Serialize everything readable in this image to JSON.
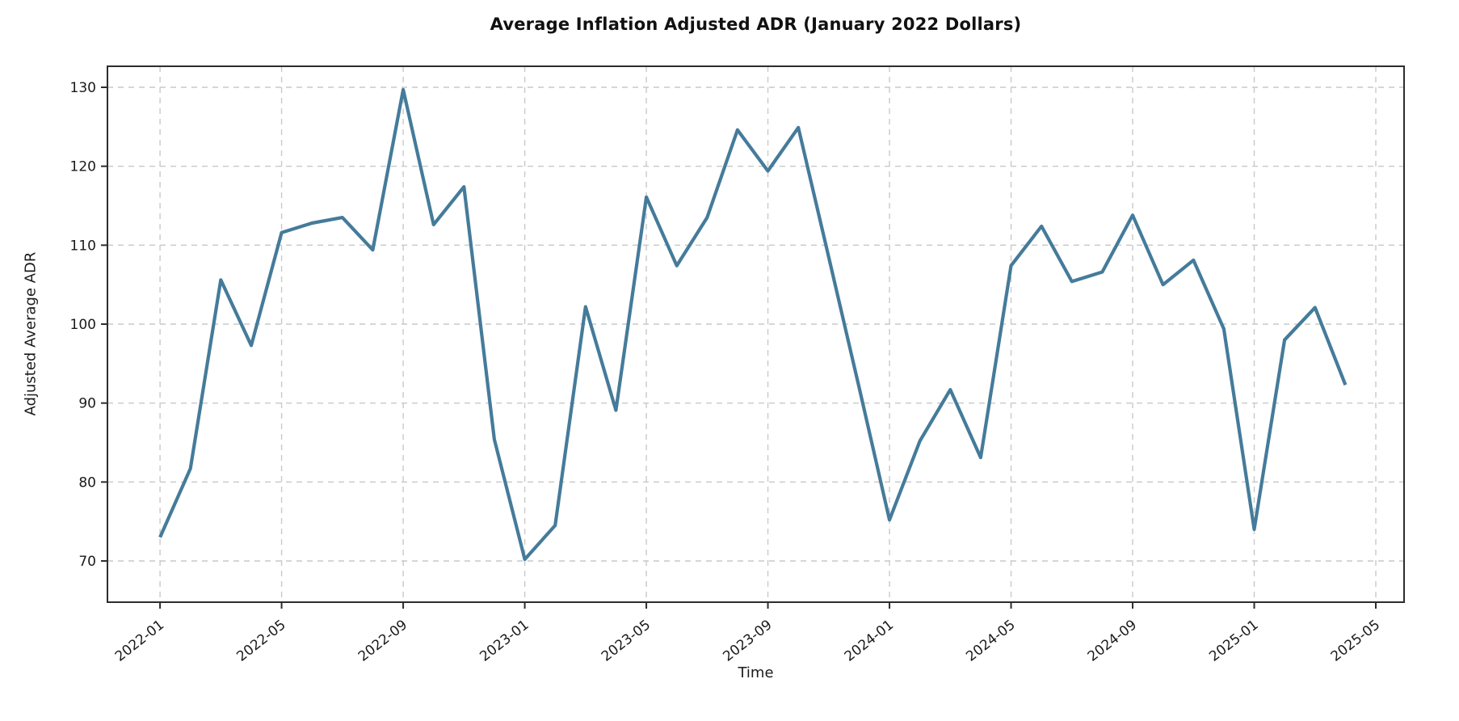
{
  "chart_data": {
    "type": "line",
    "title": "Average Inflation Adjusted ADR (January 2022 Dollars)",
    "xlabel": "Time",
    "ylabel": "Adjusted Average ADR",
    "x": [
      "2022-01",
      "2022-02",
      "2022-03",
      "2022-04",
      "2022-05",
      "2022-06",
      "2022-07",
      "2022-08",
      "2022-09",
      "2022-10",
      "2022-11",
      "2022-12",
      "2023-01",
      "2023-02",
      "2023-03",
      "2023-04",
      "2023-05",
      "2023-06",
      "2023-07",
      "2023-08",
      "2023-09",
      "2023-10",
      "2023-11",
      "2023-12",
      "2024-01",
      "2024-02",
      "2024-03",
      "2024-04",
      "2024-05",
      "2024-06",
      "2024-07",
      "2024-08",
      "2024-09",
      "2024-10",
      "2024-11",
      "2024-12",
      "2025-01",
      "2025-02",
      "2025-03",
      "2025-04"
    ],
    "values": [
      73.0,
      81.7,
      105.6,
      97.3,
      111.6,
      112.8,
      113.5,
      109.4,
      129.7,
      112.6,
      117.4,
      85.4,
      70.2,
      74.5,
      102.2,
      89.1,
      116.1,
      107.4,
      113.5,
      124.6,
      119.4,
      124.9,
      108.5,
      92.0,
      75.2,
      85.2,
      91.7,
      83.1,
      107.4,
      112.4,
      105.4,
      106.6,
      113.8,
      105.0,
      108.1,
      99.4,
      74.0,
      98.0,
      102.1,
      92.3
    ],
    "x_tick_labels": [
      "2022-01",
      "2022-05",
      "2022-09",
      "2023-01",
      "2023-05",
      "2023-09",
      "2024-01",
      "2024-05",
      "2024-09",
      "2025-01",
      "2025-05"
    ],
    "y_ticks": [
      70,
      80,
      90,
      100,
      110,
      120,
      130
    ],
    "ylim": [
      64.8,
      132.7
    ],
    "x_pad_months_left": 1.73,
    "x_pad_months_right": 0.93,
    "grid": true,
    "grid_style": "dashed",
    "legend": "none",
    "line_color": "#457B9A",
    "grid_color": "#c9c9c9",
    "spine_color": "#2d2d2d",
    "tick_label_color": "#1a1a1a",
    "line_width": 4.2,
    "x_tick_rotation_deg": 38
  }
}
